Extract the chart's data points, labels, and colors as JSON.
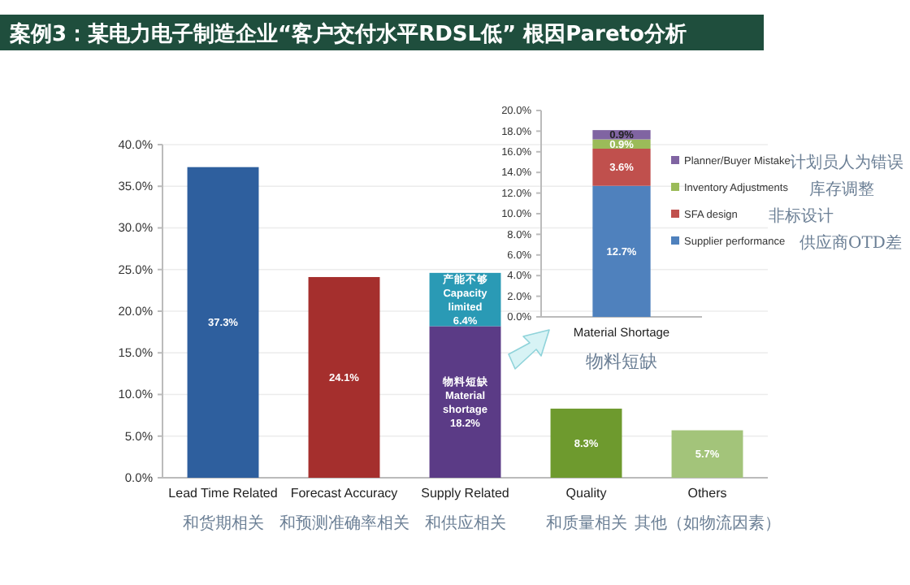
{
  "chart_data": [
    {
      "type": "bar",
      "title": "案例3：某电力电子制造企业“客户交付水平RDSL低” 根因Pareto分析",
      "stacked": true,
      "grid": "y",
      "categories": [
        "Lead Time Related\n和货期相关",
        "Forecast Accuracy\n和预测准确率相关",
        "Supply Related\n和供应相关",
        "Quality\n和质量相关",
        "Others\n其他（如物流因素）"
      ],
      "series": [
        {
          "colors": [
            "#2e5f9e",
            "#a52f2d",
            "#5b3b86",
            "#6e9a2e",
            "#a3c47a"
          ],
          "values": [
            37.3,
            24.1,
            18.2,
            8.3,
            5.7
          ],
          "value_labels": [
            "37.3%",
            "24.1%",
            "物料短缺\nMaterial\nshortage\n18.2%",
            "8.3%",
            "5.7%"
          ]
        },
        {
          "color": "#2a9ab5",
          "values": [
            null,
            null,
            6.4,
            null,
            null
          ],
          "value_labels": [
            null,
            null,
            "产能不够\nCapacity\nlimited\n6.4%",
            null,
            null
          ]
        }
      ],
      "ylim": [
        0,
        40
      ],
      "yticks": [
        {
          "value": 0,
          "label": "0.0%"
        },
        {
          "value": 5,
          "label": "5.0%"
        },
        {
          "value": 10,
          "label": "10.0%"
        },
        {
          "value": 15,
          "label": "15.0%"
        },
        {
          "value": 20,
          "label": "20.0%"
        },
        {
          "value": 25,
          "label": "25.0%"
        },
        {
          "value": 30,
          "label": "30.0%"
        },
        {
          "value": 35,
          "label": "35.0%"
        },
        {
          "value": 40,
          "label": "40.0%"
        }
      ]
    },
    {
      "type": "bar",
      "stacked": true,
      "legend": "right",
      "categories": [
        "Material Shortage\n物料短缺"
      ],
      "series": [
        {
          "name": "Supplier performance",
          "color": "#4f81bd",
          "values": [
            12.7
          ],
          "value_labels": [
            "12.7%"
          ]
        },
        {
          "name": "SFA design",
          "color": "#c0504d",
          "values": [
            3.6
          ],
          "value_labels": [
            "3.6%"
          ]
        },
        {
          "name": "Inventory Adjustments",
          "color": "#9bbb59",
          "values": [
            0.9
          ],
          "value_labels": [
            "0.9%"
          ]
        },
        {
          "name": "Planner/Buyer Mistake",
          "color": "#8064a2",
          "values": [
            0.9
          ],
          "value_labels": [
            "0.9%"
          ]
        }
      ],
      "annotations": [
        "计划员人为错误",
        "库存调整",
        "非标设计",
        "供应商OTD差"
      ],
      "ylim": [
        0,
        20
      ],
      "yticks": [
        {
          "value": 0,
          "label": "0.0%"
        },
        {
          "value": 2,
          "label": "2.0%"
        },
        {
          "value": 4,
          "label": "4.0%"
        },
        {
          "value": 6,
          "label": "6.0%"
        },
        {
          "value": 8,
          "label": "8.0%"
        },
        {
          "value": 10,
          "label": "10.0%"
        },
        {
          "value": 12,
          "label": "12.0%"
        },
        {
          "value": 14,
          "label": "14.0%"
        },
        {
          "value": 16,
          "label": "16.0%"
        },
        {
          "value": 18,
          "label": "18.0%"
        },
        {
          "value": 20,
          "label": "20.0%"
        }
      ]
    }
  ]
}
